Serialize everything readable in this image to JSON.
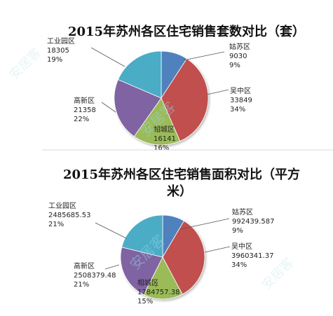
{
  "chart_data": [
    {
      "type": "pie",
      "title": "2015年苏州各区住宅销售套数对比（套）",
      "categories": [
        "姑苏区",
        "吴中区",
        "相城区",
        "高新区",
        "工业园区"
      ],
      "values": [
        9030,
        33849,
        16141,
        21358,
        18305
      ],
      "value_labels": [
        "9030",
        "33849",
        "16141",
        "21358",
        "18305"
      ],
      "percent_labels": [
        "9%",
        "34%",
        "16%",
        "22%",
        "19%"
      ]
    },
    {
      "type": "pie",
      "title_lines": [
        "2015年苏州各区住宅销售面积对比（平方",
        "米）"
      ],
      "categories": [
        "姑苏区",
        "吴中区",
        "相城区",
        "高新区",
        "工业园区"
      ],
      "values": [
        992439.587,
        3960341.37,
        1784757.38,
        2508379.48,
        2485685.53
      ],
      "value_labels": [
        "992439.587",
        "3960341.37",
        "1784757.38",
        "2508379.48",
        "2485685.53"
      ],
      "percent_labels": [
        "9%",
        "34%",
        "15%",
        "21%",
        "21%"
      ]
    }
  ],
  "colors": [
    "#4f81bd",
    "#c0504d",
    "#9bbb59",
    "#8064a2",
    "#4bacc6"
  ],
  "watermark": "安居客"
}
